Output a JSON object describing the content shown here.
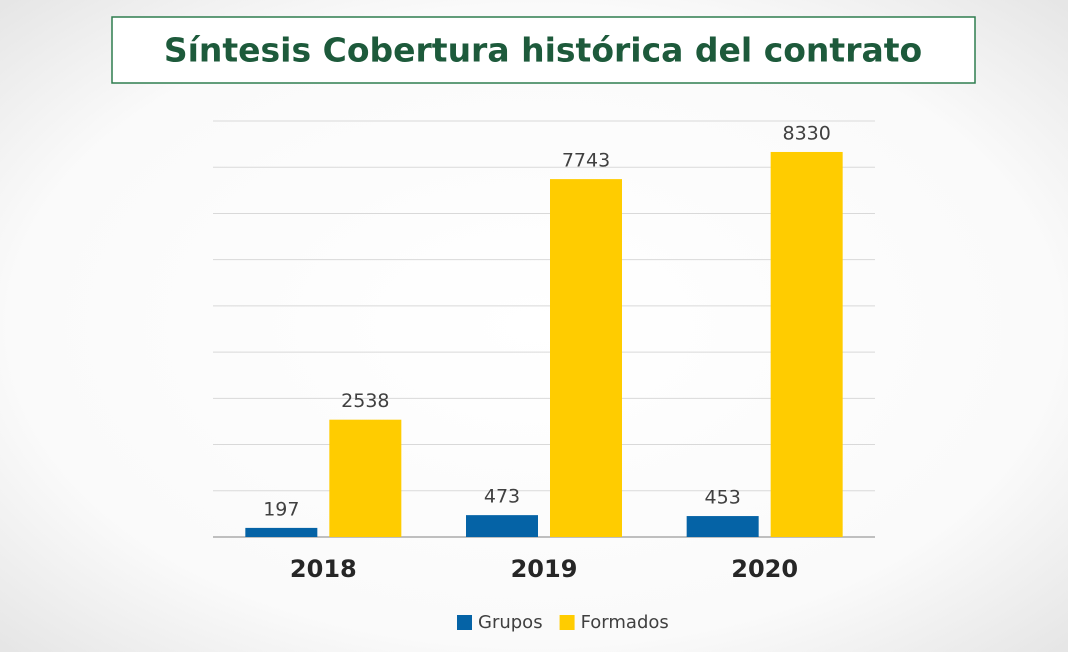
{
  "chart_data": {
    "type": "bar",
    "title": "Síntesis Cobertura histórica del contrato",
    "categories": [
      "2018",
      "2019",
      "2020"
    ],
    "series": [
      {
        "name": "Grupos",
        "color": "#0563a6",
        "values": [
          197,
          473,
          453
        ]
      },
      {
        "name": "Formados",
        "color": "#ffcc00",
        "values": [
          2538,
          7743,
          8330
        ]
      }
    ],
    "ylim": [
      0,
      9000
    ],
    "yticks": [
      0,
      1000,
      2000,
      3000,
      4000,
      5000,
      6000,
      7000,
      8000,
      9000
    ],
    "grid": true,
    "legend": "bottom"
  }
}
